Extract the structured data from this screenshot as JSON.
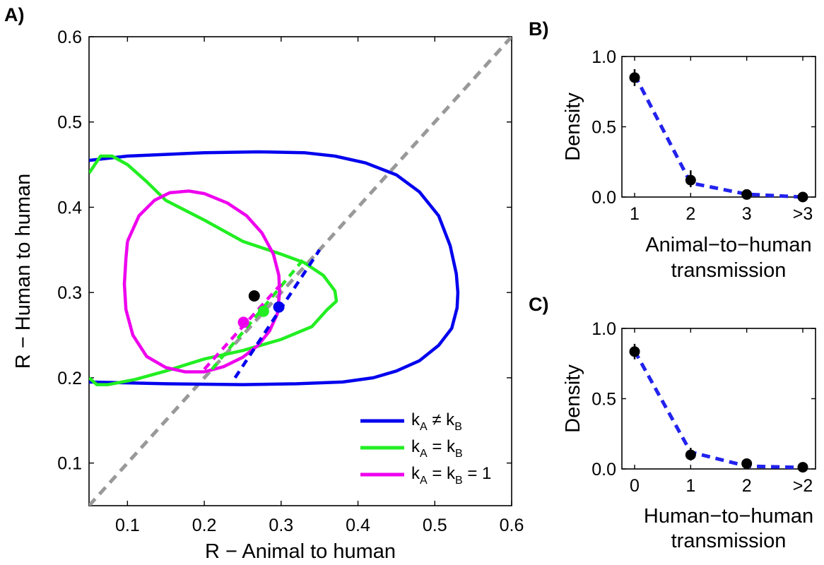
{
  "chart_data": [
    {
      "panel": "A)",
      "type": "line",
      "xlabel": "R − Animal to human",
      "ylabel": "R − Human to human",
      "xlim": [
        0.05,
        0.6
      ],
      "ylim": [
        0.05,
        0.6
      ],
      "xticks": [
        0.1,
        0.2,
        0.3,
        0.4,
        0.5,
        0.6
      ],
      "yticks": [
        0.1,
        0.2,
        0.3,
        0.4,
        0.5,
        0.6
      ],
      "tick_labels_x": [
        "0.1",
        "0.2",
        "0.3",
        "0.4",
        "0.5",
        "0.6"
      ],
      "tick_labels_y": [
        "0.1",
        "0.2",
        "0.3",
        "0.4",
        "0.5",
        "0.6"
      ],
      "grid": false,
      "legend_position": "bottom-right",
      "reference_line": {
        "color": "#999999",
        "style": "dashed",
        "x": [
          0.05,
          0.6
        ],
        "y": [
          0.05,
          0.6
        ]
      },
      "observed_point": {
        "x": 0.265,
        "y": 0.296,
        "color": "#000000"
      },
      "series": [
        {
          "legend": {
            "main": "k",
            "sub1": "A",
            "op": " ≠ k",
            "sub2": "B",
            "tail": ""
          },
          "color": "#0000ee",
          "contour": [
            [
              0.05,
              0.455
            ],
            [
              0.1,
              0.46
            ],
            [
              0.2,
              0.464
            ],
            [
              0.27,
              0.465
            ],
            [
              0.33,
              0.464
            ],
            [
              0.37,
              0.46
            ],
            [
              0.41,
              0.452
            ],
            [
              0.45,
              0.438
            ],
            [
              0.48,
              0.418
            ],
            [
              0.505,
              0.39
            ],
            [
              0.52,
              0.355
            ],
            [
              0.528,
              0.322
            ],
            [
              0.53,
              0.3
            ],
            [
              0.529,
              0.282
            ],
            [
              0.522,
              0.258
            ],
            [
              0.505,
              0.238
            ],
            [
              0.48,
              0.22
            ],
            [
              0.45,
              0.208
            ],
            [
              0.42,
              0.2
            ],
            [
              0.38,
              0.195
            ],
            [
              0.32,
              0.193
            ],
            [
              0.25,
              0.192
            ],
            [
              0.15,
              0.193
            ],
            [
              0.05,
              0.195
            ]
          ],
          "dashed_line": {
            "x": [
              0.24,
              0.35
            ],
            "y": [
              0.2,
              0.35
            ]
          },
          "point": {
            "x": 0.297,
            "y": 0.283
          }
        },
        {
          "legend": {
            "main": "k",
            "sub1": "A",
            "op": " = k",
            "sub2": "B",
            "tail": ""
          },
          "color": "#22ee22",
          "contour": [
            [
              0.05,
              0.44
            ],
            [
              0.065,
              0.46
            ],
            [
              0.08,
              0.46
            ],
            [
              0.1,
              0.45
            ],
            [
              0.125,
              0.43
            ],
            [
              0.15,
              0.408
            ],
            [
              0.2,
              0.385
            ],
            [
              0.25,
              0.36
            ],
            [
              0.3,
              0.345
            ],
            [
              0.33,
              0.335
            ],
            [
              0.355,
              0.32
            ],
            [
              0.37,
              0.302
            ],
            [
              0.372,
              0.29
            ],
            [
              0.36,
              0.28
            ],
            [
              0.34,
              0.26
            ],
            [
              0.3,
              0.245
            ],
            [
              0.25,
              0.232
            ],
            [
              0.2,
              0.222
            ],
            [
              0.15,
              0.208
            ],
            [
              0.11,
              0.198
            ],
            [
              0.075,
              0.192
            ],
            [
              0.06,
              0.192
            ],
            [
              0.05,
              0.2
            ]
          ],
          "dashed_line": {
            "x": [
              0.21,
              0.33
            ],
            "y": [
              0.21,
              0.34
            ]
          },
          "point": {
            "x": 0.277,
            "y": 0.278
          }
        },
        {
          "legend": {
            "main": "k",
            "sub1": "A",
            "op": " = k",
            "sub2": "B",
            "tail": " = 1"
          },
          "color": "#ee00ee",
          "contour": [
            [
              0.1,
              0.36
            ],
            [
              0.115,
              0.39
            ],
            [
              0.135,
              0.408
            ],
            [
              0.155,
              0.417
            ],
            [
              0.18,
              0.419
            ],
            [
              0.2,
              0.416
            ],
            [
              0.23,
              0.405
            ],
            [
              0.255,
              0.39
            ],
            [
              0.275,
              0.37
            ],
            [
              0.29,
              0.345
            ],
            [
              0.297,
              0.32
            ],
            [
              0.298,
              0.3
            ],
            [
              0.295,
              0.275
            ],
            [
              0.285,
              0.255
            ],
            [
              0.27,
              0.238
            ],
            [
              0.25,
              0.224
            ],
            [
              0.225,
              0.213
            ],
            [
              0.2,
              0.207
            ],
            [
              0.175,
              0.207
            ],
            [
              0.15,
              0.212
            ],
            [
              0.125,
              0.225
            ],
            [
              0.107,
              0.25
            ],
            [
              0.098,
              0.28
            ],
            [
              0.096,
              0.31
            ],
            [
              0.098,
              0.34
            ],
            [
              0.1,
              0.36
            ]
          ],
          "dashed_line": {
            "x": [
              0.2,
              0.3
            ],
            "y": [
              0.21,
              0.31
            ]
          },
          "point": {
            "x": 0.251,
            "y": 0.265
          }
        }
      ]
    },
    {
      "panel": "B)",
      "type": "line",
      "xlabel": [
        "Animal−to−human",
        "transmission"
      ],
      "ylabel": "Density",
      "categories": [
        "1",
        "2",
        "3",
        ">3"
      ],
      "ylim": [
        0,
        1
      ],
      "yticks": [
        0,
        0.5,
        1
      ],
      "tick_labels_y": [
        "0.0",
        "0.5",
        "1.0"
      ],
      "observed": [
        0.85,
        0.12,
        0.018,
        0.0
      ],
      "error_low": [
        0.79,
        0.07,
        0.0,
        0.0
      ],
      "error_high": [
        0.91,
        0.19,
        0.05,
        0.01
      ],
      "model": [
        0.87,
        0.1,
        0.02,
        0.0
      ],
      "model_color": "#2222ee"
    },
    {
      "panel": "C)",
      "type": "line",
      "xlabel": [
        "Human−to−human",
        "transmission"
      ],
      "ylabel": "Density",
      "categories": [
        "0",
        "1",
        "2",
        ">2"
      ],
      "ylim": [
        0,
        1
      ],
      "yticks": [
        0,
        0.5,
        1
      ],
      "tick_labels_y": [
        "0.0",
        "0.5",
        "1.0"
      ],
      "observed": [
        0.835,
        0.1,
        0.038,
        0.012
      ],
      "error_low": [
        0.78,
        0.06,
        0.01,
        0.0
      ],
      "error_high": [
        0.89,
        0.15,
        0.07,
        0.03
      ],
      "model": [
        0.84,
        0.12,
        0.02,
        0.01
      ],
      "model_color": "#2222ee"
    }
  ]
}
